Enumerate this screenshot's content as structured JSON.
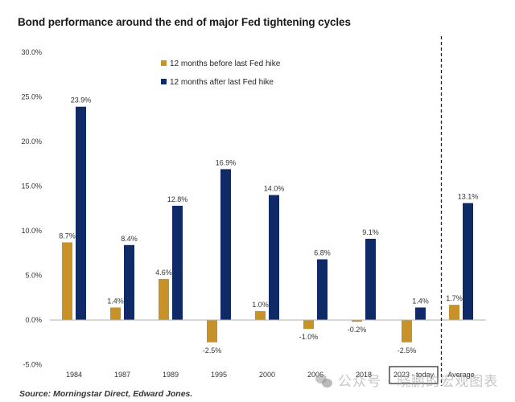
{
  "header": {
    "title": "Bond performance around the end of major Fed tightening cycles"
  },
  "footer": {
    "source": "Source: Morningstar Direct, Edward Jones."
  },
  "watermark": {
    "icon": "wechat-icon",
    "text": "公众号 · 晓鹏的宏观图表"
  },
  "colors": {
    "before": "#C8922A",
    "after": "#0F2A66",
    "axis": "#b0b0b0",
    "text": "#333333"
  },
  "chart_data": {
    "type": "bar",
    "title": "Bond performance around the end of major Fed tightening cycles",
    "xlabel": "",
    "ylabel": "",
    "ylim": [
      -5,
      30
    ],
    "yticks": [
      30,
      25,
      20,
      15,
      10,
      5,
      0,
      -5
    ],
    "ytick_labels": [
      "30.0%",
      "25.0%",
      "20.0%",
      "15.0%",
      "10.0%",
      "5.0%",
      "0.0%",
      "-5.0%"
    ],
    "grid": false,
    "legend_position": "top-left",
    "categories": [
      "1984",
      "1987",
      "1989",
      "1995",
      "2000",
      "2006",
      "2018",
      "2023 - today",
      "Average"
    ],
    "highlighted_category": "2023 - today",
    "separator_before": "Average",
    "series": [
      {
        "name": "12 months before last Fed hike",
        "values": [
          8.7,
          1.4,
          4.6,
          -2.5,
          1.0,
          -1.0,
          -0.2,
          -2.5,
          1.7
        ],
        "labels": [
          "8.7%",
          "1.4%",
          "4.6%",
          "-2.5%",
          "1.0%",
          "-1.0%",
          "-0.2%",
          "-2.5%",
          "1.7%"
        ]
      },
      {
        "name": "12 months after last Fed hike",
        "values": [
          23.9,
          8.4,
          12.8,
          16.9,
          14.0,
          6.8,
          9.1,
          1.4,
          13.1
        ],
        "labels": [
          "23.9%",
          "8.4%",
          "12.8%",
          "16.9%",
          "14.0%",
          "6.8%",
          "9.1%",
          "1.4%",
          "13.1%"
        ]
      }
    ]
  }
}
